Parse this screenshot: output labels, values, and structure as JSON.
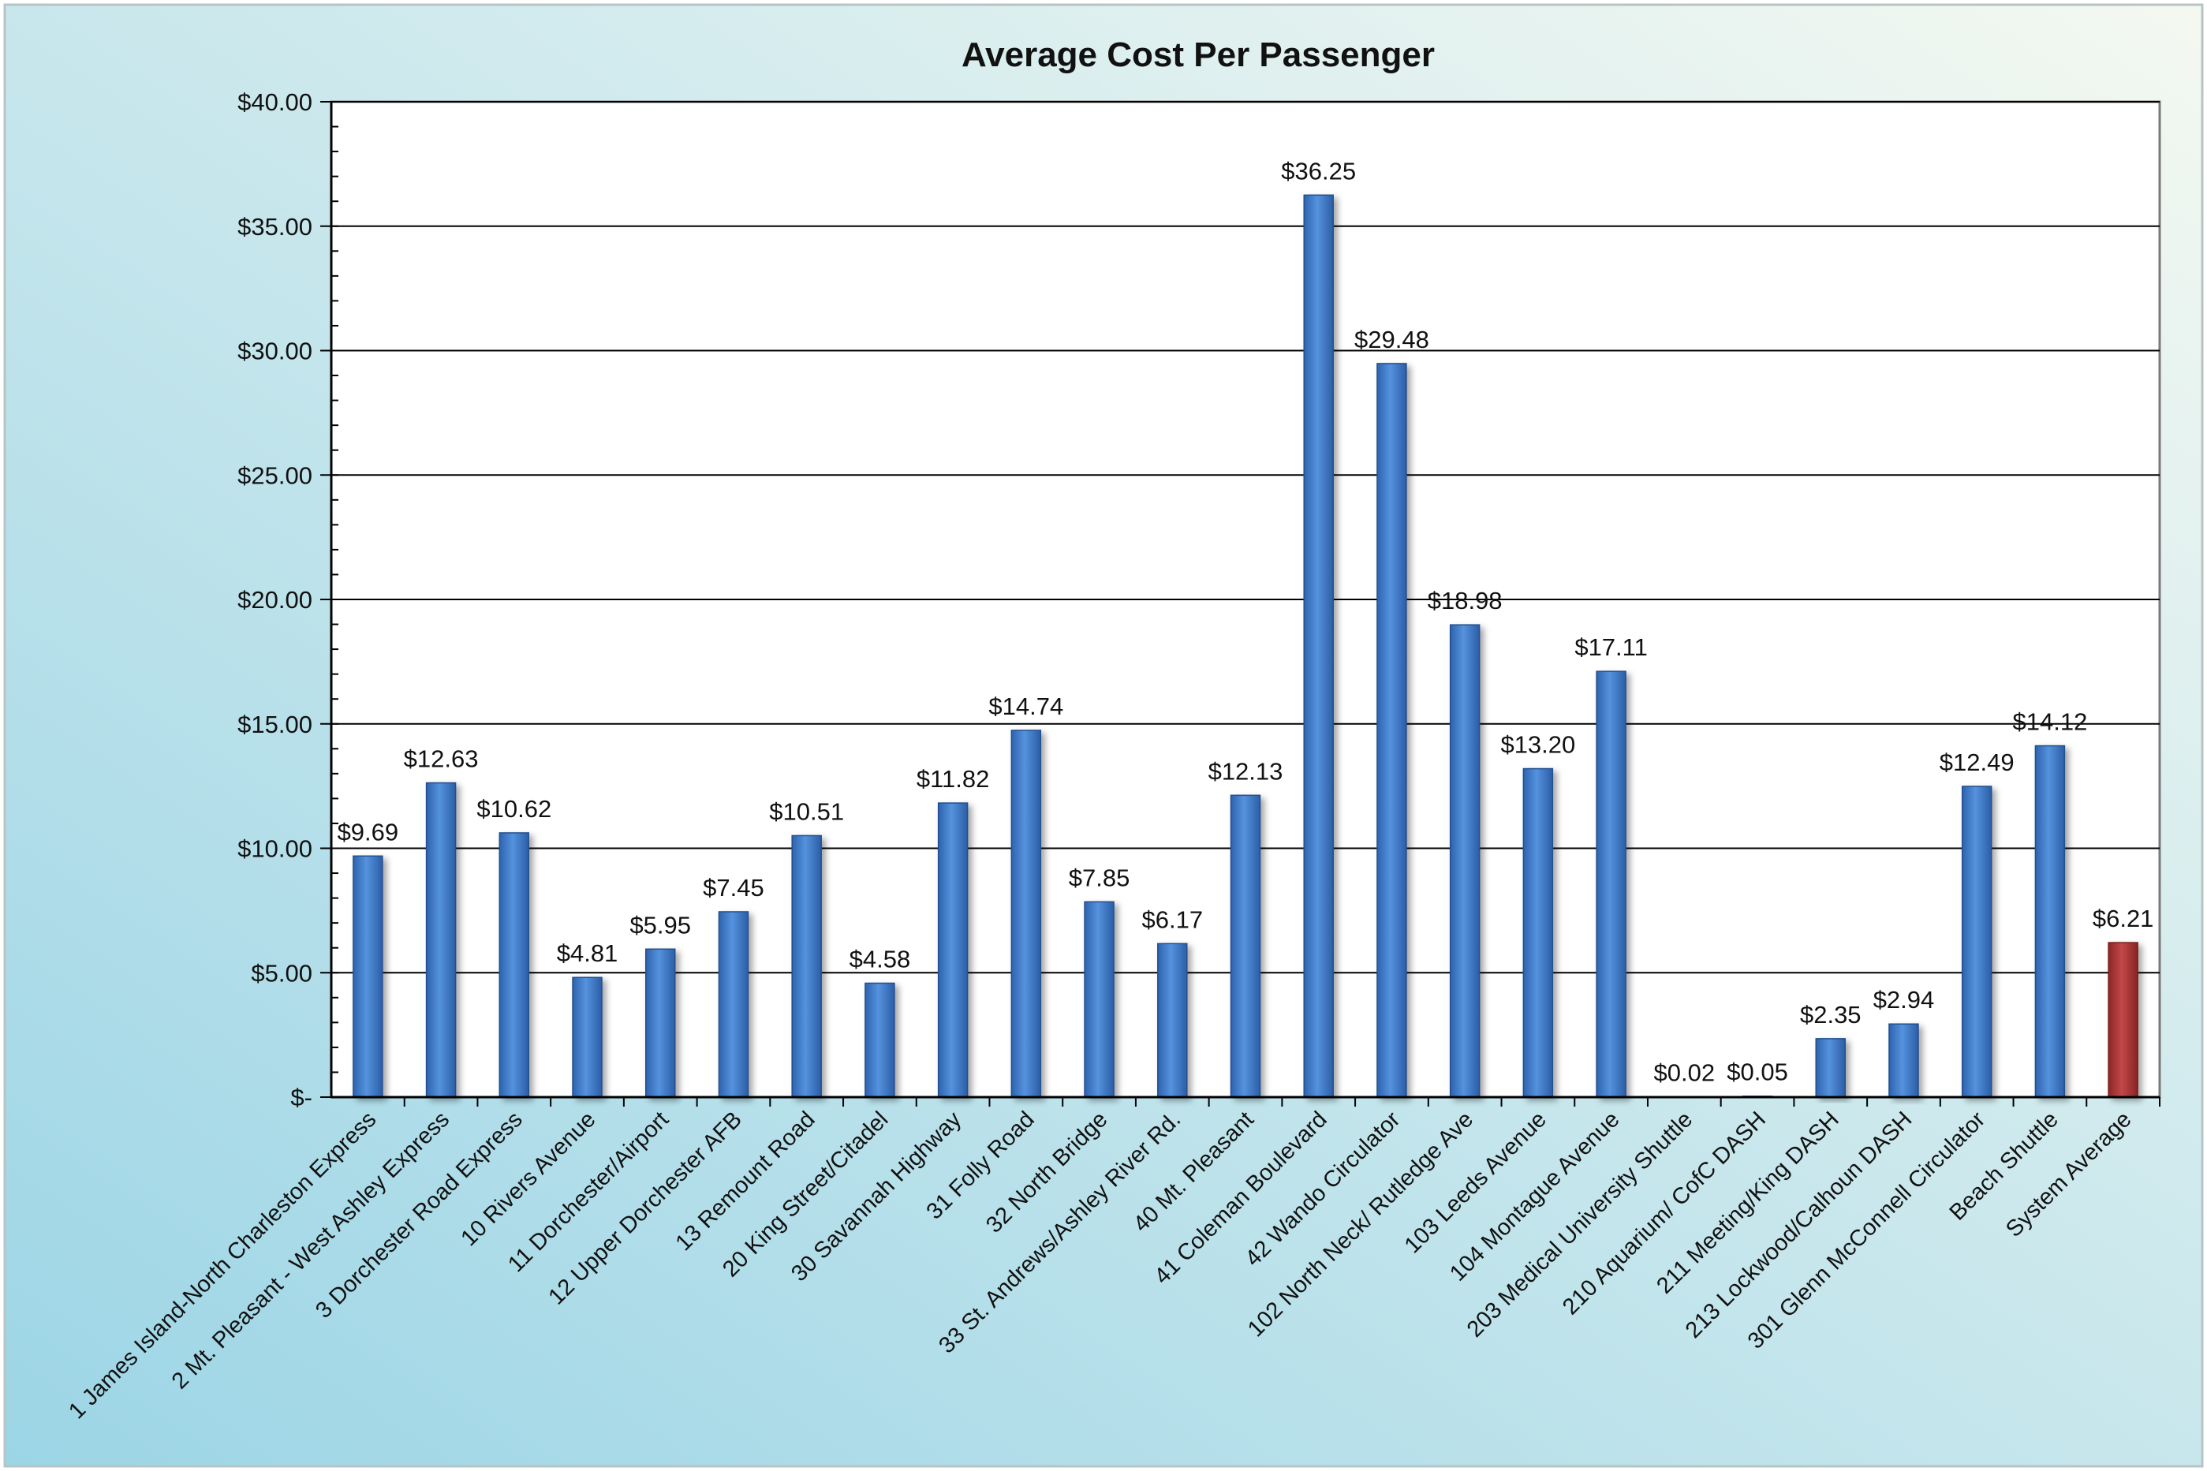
{
  "chart_data": {
    "type": "bar",
    "title": "Average Cost Per Passenger",
    "xlabel": "",
    "ylabel": "",
    "ylim": [
      0,
      40
    ],
    "yticks": [
      {
        "value": 0,
        "label": "$-"
      },
      {
        "value": 5,
        "label": "$5.00"
      },
      {
        "value": 10,
        "label": "$10.00"
      },
      {
        "value": 15,
        "label": "$15.00"
      },
      {
        "value": 20,
        "label": "$20.00"
      },
      {
        "value": 25,
        "label": "$25.00"
      },
      {
        "value": 30,
        "label": "$30.00"
      },
      {
        "value": 35,
        "label": "$35.00"
      },
      {
        "value": 40,
        "label": "$40.00"
      }
    ],
    "grid": true,
    "legend": "none",
    "colors": {
      "bar": "#3F7BC9",
      "bar_dark": "#24508F",
      "highlight": "#B23A3A",
      "highlight_dark": "#7A1E1E",
      "grid": "#000000",
      "background_light": "#EAF4F3",
      "background_dark": "#9FD6E6"
    },
    "categories": [
      "1 James Island-North Charleston Express",
      "2 Mt. Pleasant - West Ashley Express",
      "3 Dorchester Road Express",
      "10 Rivers Avenue",
      "11 Dorchester/Airport",
      "12 Upper Dorchester AFB",
      "13 Remount Road",
      "20 King Street/Citadel",
      "30 Savannah Highway",
      "31 Folly Road",
      "32 North Bridge",
      "33 St. Andrews/Ashley River Rd.",
      "40 Mt. Pleasant",
      "41 Coleman Boulevard",
      "42 Wando Circulator",
      "102 North Neck/ Rutledge Ave",
      "103 Leeds Avenue",
      "104 Montague Avenue",
      "203 Medical University Shuttle",
      "210 Aquarium/ CofC DASH",
      "211 Meeting/King DASH",
      "213 Lockwood/Calhoun DASH",
      "301 Glenn McConnell Circulator",
      "Beach Shuttle",
      "System Average"
    ],
    "values": [
      9.69,
      12.63,
      10.62,
      4.81,
      5.95,
      7.45,
      10.51,
      4.58,
      11.82,
      14.74,
      7.85,
      6.17,
      12.13,
      36.25,
      29.48,
      18.98,
      13.2,
      17.11,
      0.02,
      0.05,
      2.35,
      2.94,
      12.49,
      14.12,
      6.21
    ],
    "data_labels": [
      "$9.69",
      "$12.63",
      "$10.62",
      "$4.81",
      "$5.95",
      "$7.45",
      "$10.51",
      "$4.58",
      "$11.82",
      "$14.74",
      "$7.85",
      "$6.17",
      "$12.13",
      "$36.25",
      "$29.48",
      "$18.98",
      "$13.20",
      "$17.11",
      "$0.02",
      "$0.05",
      "$2.35",
      "$2.94",
      "$12.49",
      "$14.12",
      "$6.21"
    ],
    "highlighted_category": "System Average"
  }
}
